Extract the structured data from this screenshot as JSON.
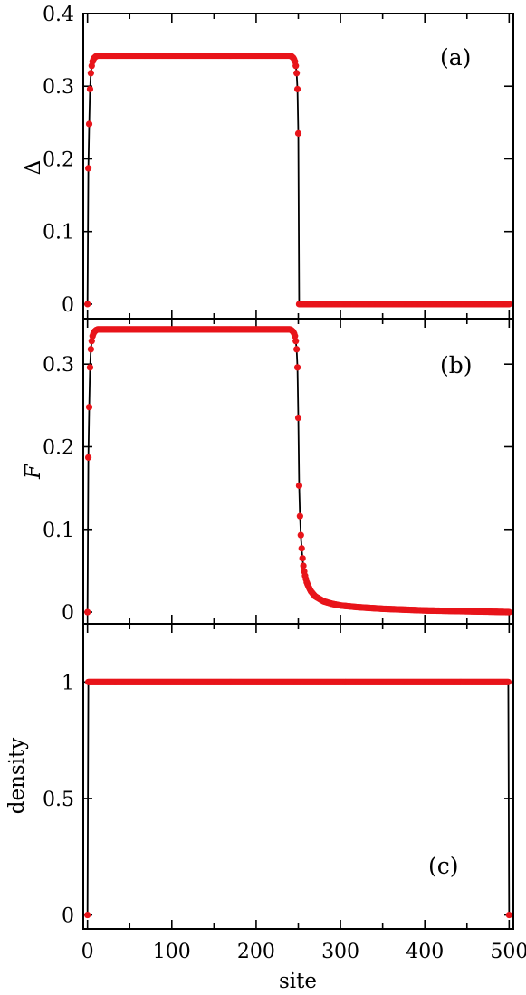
{
  "chart_data": {
    "type": "scatter",
    "xlabel": "site",
    "xlim": [
      -5,
      505
    ],
    "xticks": [
      0,
      100,
      200,
      300,
      400,
      500
    ],
    "panels": [
      {
        "id": "a",
        "panel_label": "(a)",
        "ylabel": "Δ",
        "ylabel_italic": false,
        "ylim": [
          -0.02,
          0.4
        ],
        "yticks": [
          0,
          0.1,
          0.2,
          0.3,
          0.4
        ],
        "ytick_labels": [
          "0",
          "0.1",
          "0.2",
          "0.3",
          "0.4"
        ],
        "series": [
          {
            "color": "#e8141a",
            "points": [
              [
                0,
                0
              ],
              [
                1,
                0.187
              ],
              [
                2,
                0.248
              ],
              [
                3,
                0.296
              ],
              [
                4,
                0.318
              ],
              [
                5,
                0.328
              ],
              [
                6,
                0.334
              ],
              [
                7,
                0.337
              ],
              [
                8,
                0.339
              ],
              [
                9,
                0.34
              ],
              [
                10,
                0.341
              ],
              [
                12,
                0.342
              ],
              [
                240,
                0.342
              ],
              [
                242,
                0.341
              ],
              [
                243,
                0.34
              ],
              [
                244,
                0.339
              ],
              [
                245,
                0.337
              ],
              [
                246,
                0.334
              ],
              [
                247,
                0.328
              ],
              [
                248,
                0.318
              ],
              [
                249,
                0.296
              ],
              [
                250,
                0.235
              ],
              [
                251,
                0
              ],
              [
                500,
                0
              ]
            ],
            "fill_step": 1
          }
        ]
      },
      {
        "id": "b",
        "panel_label": "(b)",
        "ylabel": "F",
        "ylabel_italic": true,
        "ylim": [
          -0.0142,
          0.355
        ],
        "yticks": [
          0,
          0.1,
          0.2,
          0.3
        ],
        "ytick_labels": [
          "0",
          "0.1",
          "0.2",
          "0.3"
        ],
        "series": [
          {
            "color": "#e8141a",
            "points": [
              [
                0,
                0
              ],
              [
                1,
                0.187
              ],
              [
                2,
                0.248
              ],
              [
                3,
                0.296
              ],
              [
                4,
                0.318
              ],
              [
                5,
                0.328
              ],
              [
                6,
                0.334
              ],
              [
                7,
                0.337
              ],
              [
                8,
                0.339
              ],
              [
                9,
                0.34
              ],
              [
                10,
                0.341
              ],
              [
                12,
                0.342
              ],
              [
                240,
                0.342
              ],
              [
                242,
                0.341
              ],
              [
                243,
                0.34
              ],
              [
                244,
                0.339
              ],
              [
                245,
                0.337
              ],
              [
                246,
                0.334
              ],
              [
                247,
                0.328
              ],
              [
                248,
                0.318
              ],
              [
                249,
                0.296
              ],
              [
                250,
                0.235
              ],
              [
                251,
                0.153
              ],
              [
                252,
                0.116
              ],
              [
                253,
                0.093
              ],
              [
                254,
                0.077
              ],
              [
                255,
                0.065
              ],
              [
                256,
                0.056
              ],
              [
                257,
                0.049
              ],
              [
                258,
                0.044
              ],
              [
                260,
                0.036
              ],
              [
                262,
                0.031
              ],
              [
                265,
                0.025
              ],
              [
                270,
                0.019
              ],
              [
                275,
                0.016
              ],
              [
                280,
                0.013
              ],
              [
                290,
                0.01
              ],
              [
                300,
                0.008
              ],
              [
                320,
                0.006
              ],
              [
                350,
                0.004
              ],
              [
                400,
                0.002
              ],
              [
                450,
                0.001
              ],
              [
                500,
                0
              ]
            ],
            "fill_step": 1
          }
        ]
      },
      {
        "id": "c",
        "panel_label": "(c)",
        "ylabel": "density",
        "ylabel_italic": false,
        "ylim": [
          -0.06,
          1.25
        ],
        "yticks": [
          0,
          0.5,
          1
        ],
        "ytick_labels": [
          "0",
          "0.5",
          "1"
        ],
        "series": [
          {
            "color": "#e8141a",
            "points": [
              [
                0,
                0
              ],
              [
                1,
                1
              ],
              [
                499,
                1
              ],
              [
                500,
                0
              ]
            ],
            "fill_step": 1
          }
        ]
      }
    ]
  }
}
